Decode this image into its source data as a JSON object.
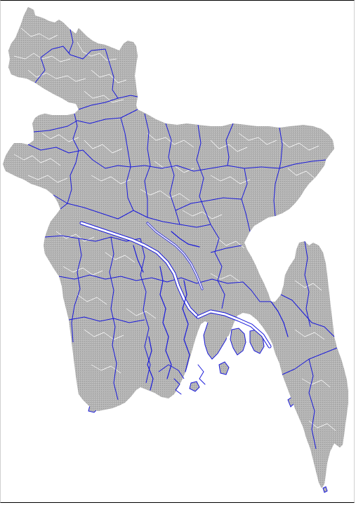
{
  "map": {
    "colors": {
      "background": "#ffffff",
      "land_fill": "#b4b4b4",
      "district_boundary": "#1a1adb",
      "subdistrict_boundary": "#ffffff",
      "water": "#ffffff",
      "frame": "#000000"
    },
    "layers": [
      "land",
      "subdistrict-boundaries",
      "district-boundaries",
      "rivers"
    ]
  }
}
